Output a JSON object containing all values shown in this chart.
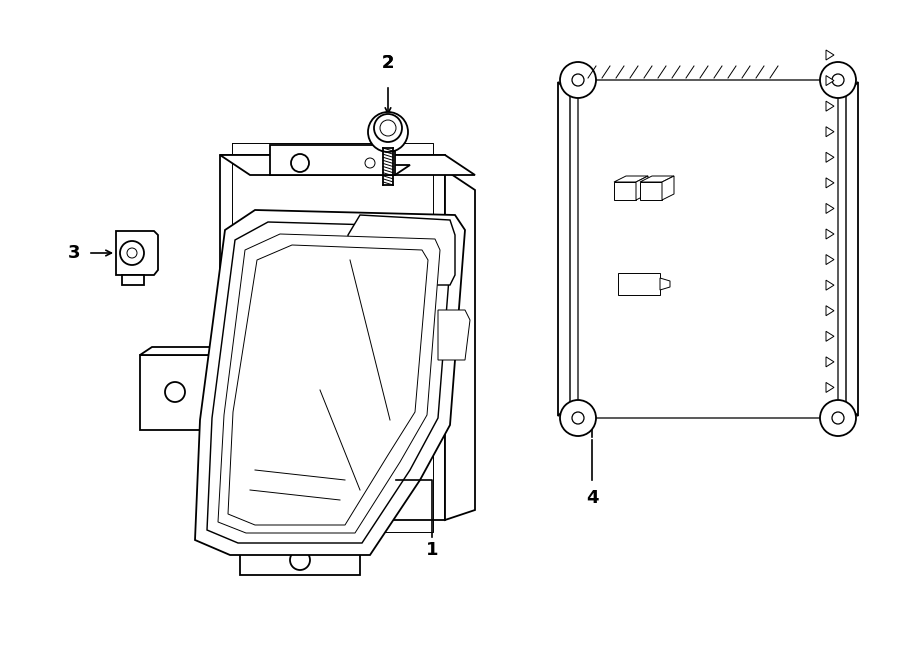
{
  "bg_color": "#ffffff",
  "lc": "#000000",
  "lw": 1.3,
  "thin_lw": 0.7,
  "fig_w": 9.0,
  "fig_h": 6.62,
  "dpi": 100
}
